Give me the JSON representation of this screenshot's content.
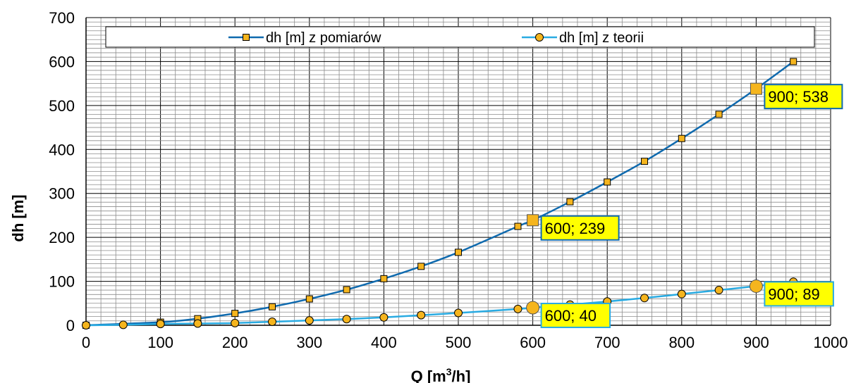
{
  "chart_data": {
    "type": "line",
    "title": "",
    "xlabel_main": "Q [m",
    "xlabel_sup": "3",
    "xlabel_tail": "/h]",
    "ylabel": "dh [m]",
    "xlim": [
      0,
      1000
    ],
    "ylim": [
      0,
      700
    ],
    "x_ticks": [
      "0",
      "100",
      "200",
      "300",
      "400",
      "500",
      "600",
      "700",
      "800",
      "900",
      "1000"
    ],
    "y_ticks": [
      "0",
      "100",
      "200",
      "300",
      "400",
      "500",
      "600",
      "700"
    ],
    "grid": true,
    "legend_position": "top",
    "series": [
      {
        "name": "dh [m] z pomiarów",
        "color": "#0F6AAE",
        "marker": "square",
        "x": [
          0,
          100,
          150,
          200,
          250,
          300,
          350,
          400,
          450,
          500,
          580,
          600,
          650,
          700,
          750,
          800,
          850,
          900,
          950
        ],
        "y": [
          0,
          7,
          15,
          27,
          42,
          60,
          81,
          106,
          134,
          166,
          225,
          239,
          281,
          326,
          373,
          425,
          480,
          538,
          600
        ]
      },
      {
        "name": "dh [m] z teorii",
        "color": "#29ABE2",
        "marker": "circle",
        "x": [
          0,
          50,
          100,
          150,
          200,
          250,
          300,
          350,
          400,
          450,
          500,
          580,
          600,
          650,
          700,
          750,
          800,
          850,
          900,
          950
        ],
        "y": [
          0,
          1,
          3,
          4,
          5,
          8,
          11,
          14,
          18,
          23,
          28,
          37,
          40,
          47,
          54,
          62,
          71,
          80,
          89,
          99
        ]
      }
    ],
    "annotations": [
      {
        "x": 900,
        "y": 538,
        "text": "900; 538",
        "series": 0
      },
      {
        "x": 600,
        "y": 239,
        "text": "600; 239",
        "series": 0
      },
      {
        "x": 900,
        "y": 89,
        "text": "900; 89",
        "series": 1
      },
      {
        "x": 600,
        "y": 40,
        "text": "600; 40",
        "series": 1
      }
    ],
    "colors": {
      "callout_fill": "#FFFF00",
      "marker_fill": "#F5B51E"
    }
  }
}
